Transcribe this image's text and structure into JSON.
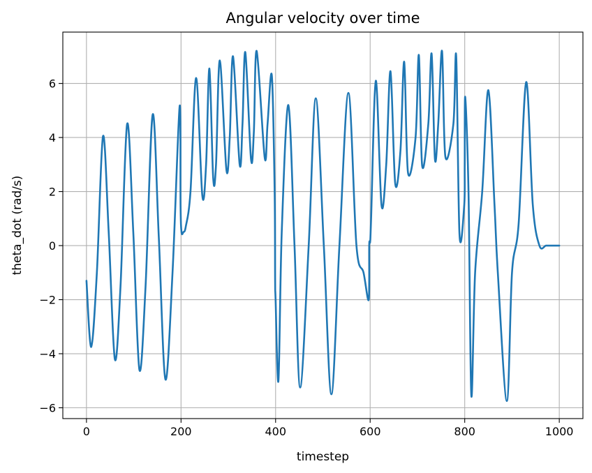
{
  "chart_data": {
    "type": "line",
    "title": "Angular velocity over time",
    "xlabel": "timestep",
    "ylabel": "theta_dot (rad/s)",
    "xlim": [
      -50,
      1050
    ],
    "ylim": [
      -6.4,
      7.9
    ],
    "xticks": [
      0,
      200,
      400,
      600,
      800,
      1000
    ],
    "yticks": [
      -6,
      -4,
      -2,
      0,
      2,
      4,
      6
    ],
    "xtick_labels": [
      "0",
      "200",
      "400",
      "600",
      "800",
      "1000"
    ],
    "ytick_labels": [
      "−6",
      "−4",
      "−2",
      "0",
      "2",
      "4",
      "6"
    ],
    "grid": true,
    "series": [
      {
        "color": "#1f77b4",
        "x": [
          0,
          10,
          22,
          35,
          47,
          60,
          72,
          86,
          99,
          112,
          125,
          140,
          153,
          167,
          182,
          197,
          199,
          201,
          205,
          210,
          220,
          232,
          245,
          253,
          260,
          268,
          274,
          282,
          296,
          303,
          310,
          324,
          330,
          336,
          348,
          354,
          360,
          377,
          383,
          392,
          398,
          399,
          400,
          406,
          413,
          427,
          440,
          452,
          470,
          485,
          502,
          518,
          535,
          554,
          571,
          586,
          597,
          598,
          600,
          602,
          612,
          624,
          634,
          643,
          653,
          664,
          672,
          680,
          696,
          703,
          710,
          723,
          730,
          737,
          744,
          752,
          759,
          776,
          782,
          789,
          799,
          800,
          801,
          808,
          814,
          822,
          837,
          850,
          863,
          870,
          889,
          900,
          914,
          930,
          944,
          958,
          972,
          984,
          1000
        ],
        "y": [
          -1.3,
          -3.75,
          -1.0,
          4.05,
          0.5,
          -4.2,
          -1.5,
          4.5,
          0.5,
          -4.6,
          -1.5,
          4.85,
          0.3,
          -4.95,
          -1.0,
          5.15,
          1.5,
          0.5,
          0.5,
          0.7,
          2.0,
          6.2,
          1.85,
          3.0,
          6.55,
          2.5,
          3.0,
          6.85,
          2.8,
          4.0,
          7.0,
          3.0,
          4.5,
          7.15,
          3.2,
          4.2,
          7.2,
          3.25,
          4.5,
          6.3,
          2.0,
          -1.3,
          -2.0,
          -5.0,
          0.5,
          5.2,
          0.0,
          -5.25,
          0.0,
          5.45,
          0.0,
          -5.5,
          0.0,
          5.65,
          0.0,
          -1.0,
          -2.0,
          0.0,
          0.15,
          1.0,
          6.1,
          1.5,
          3.0,
          6.45,
          2.3,
          3.5,
          6.8,
          2.7,
          4.0,
          7.05,
          2.95,
          4.5,
          7.1,
          3.2,
          4.5,
          7.2,
          3.3,
          4.5,
          7.0,
          0.4,
          1.5,
          3.0,
          5.5,
          2.0,
          -5.55,
          -1.0,
          2.0,
          5.75,
          1.5,
          -1.0,
          -5.75,
          -1.0,
          0.8,
          6.05,
          1.5,
          0.0,
          0.0,
          0.0,
          0.0
        ]
      }
    ]
  }
}
